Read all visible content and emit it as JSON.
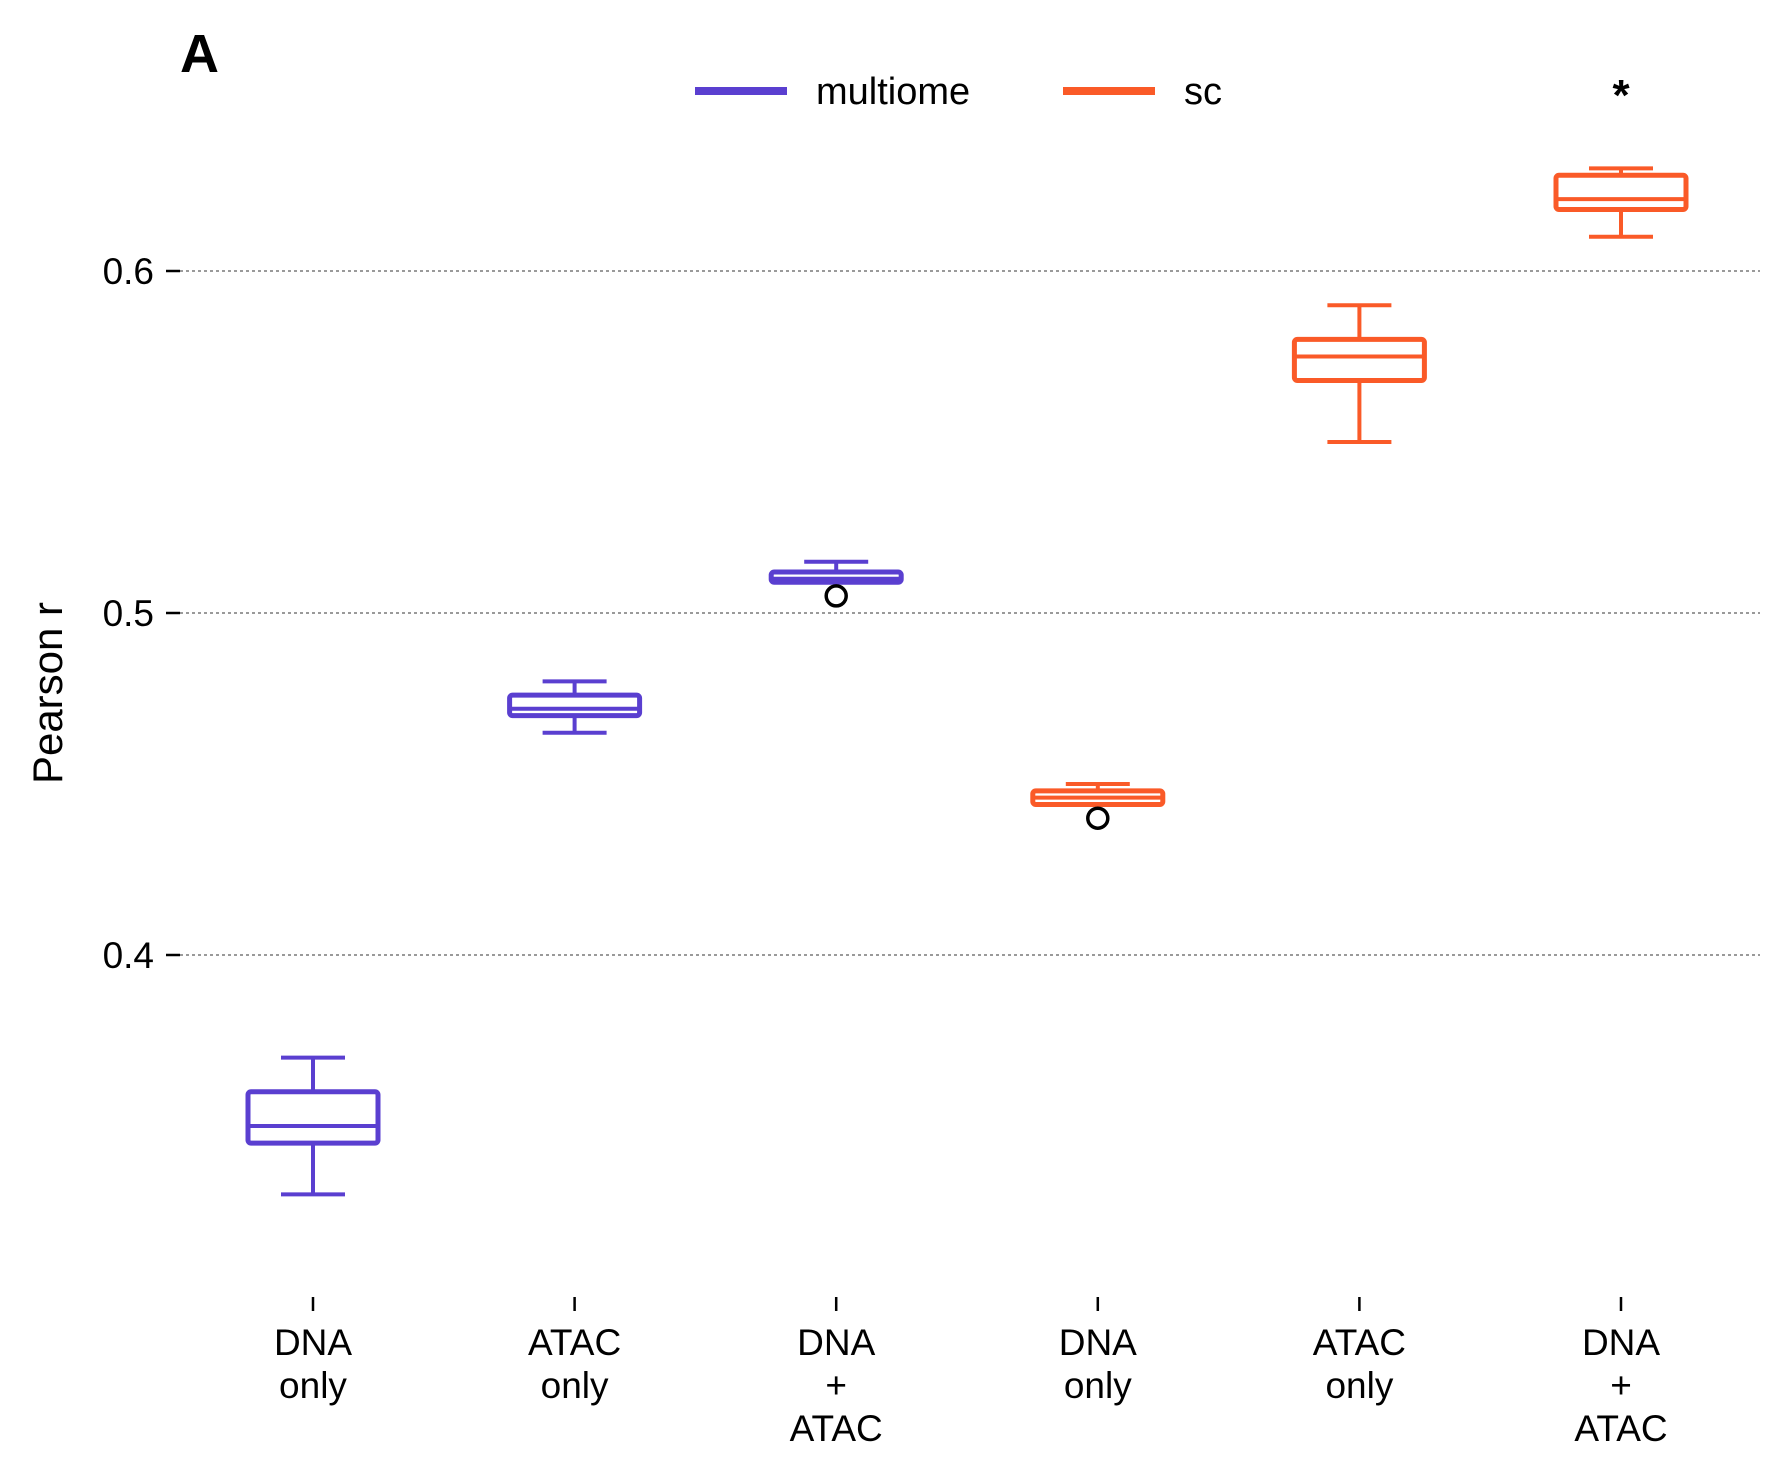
{
  "panel_label": "A",
  "chart_data": {
    "type": "box",
    "title": "",
    "xlabel": "",
    "ylabel": "Pearson r",
    "ylim": [
      0.3,
      0.66
    ],
    "yticks": [
      0.4,
      0.5,
      0.6
    ],
    "ytick_labels": [
      "0.4",
      "0.5",
      "0.6"
    ],
    "grid": "y-dotted",
    "legend_placement": "top-center",
    "series": [
      {
        "name": "multiome",
        "color": "#5a3fd0"
      },
      {
        "name": "sc",
        "color": "#fa5a28"
      }
    ],
    "categories": [
      {
        "lines": [
          "DNA",
          "only"
        ]
      },
      {
        "lines": [
          "ATAC",
          "only"
        ]
      },
      {
        "lines": [
          "DNA",
          "+",
          "ATAC"
        ]
      },
      {
        "lines": [
          "DNA",
          "only"
        ]
      },
      {
        "lines": [
          "ATAC",
          "only"
        ]
      },
      {
        "lines": [
          "DNA",
          "+",
          "ATAC"
        ]
      }
    ],
    "boxes": [
      {
        "series": "multiome",
        "whisker_low": 0.33,
        "q1": 0.345,
        "median": 0.35,
        "q3": 0.36,
        "whisker_high": 0.37,
        "outliers": []
      },
      {
        "series": "multiome",
        "whisker_low": 0.465,
        "q1": 0.47,
        "median": 0.472,
        "q3": 0.476,
        "whisker_high": 0.48,
        "outliers": []
      },
      {
        "series": "multiome",
        "whisker_low": 0.509,
        "q1": 0.509,
        "median": 0.51,
        "q3": 0.512,
        "whisker_high": 0.515,
        "outliers": [
          0.505
        ]
      },
      {
        "series": "sc",
        "whisker_low": 0.444,
        "q1": 0.444,
        "median": 0.446,
        "q3": 0.448,
        "whisker_high": 0.45,
        "outliers": [
          0.44
        ]
      },
      {
        "series": "sc",
        "whisker_low": 0.55,
        "q1": 0.568,
        "median": 0.575,
        "q3": 0.58,
        "whisker_high": 0.59,
        "outliers": []
      },
      {
        "series": "sc",
        "whisker_low": 0.61,
        "q1": 0.618,
        "median": 0.621,
        "q3": 0.628,
        "whisker_high": 0.63,
        "outliers": []
      }
    ],
    "annotations": [
      {
        "text": "*",
        "category_index": 5
      }
    ]
  }
}
